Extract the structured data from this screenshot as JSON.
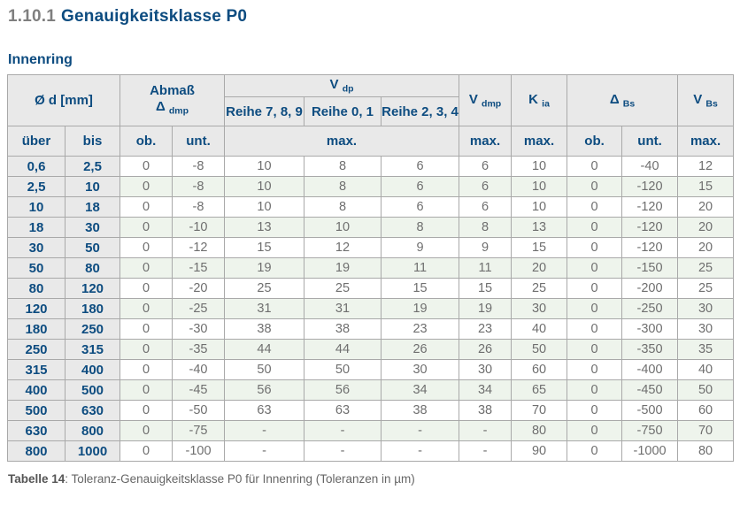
{
  "page": {
    "section_number": "1.10.1",
    "section_title": "Genauigkeitsklasse P0",
    "subtitle": "Innenring",
    "caption_label": "Tabelle 14",
    "caption_text": ": Toleranz-Genauigkeitsklasse P0 für Innenring (Toleranzen in µm)"
  },
  "colors": {
    "heading_blue": "#0d4c80",
    "section_number_gray": "#7f7f7f",
    "header_bg": "#e9e9e9",
    "stripe_green": "#eef4ec",
    "data_text_gray": "#6f6f6f",
    "border_gray": "#a9a9a9"
  },
  "table": {
    "headers": {
      "diameter": "Ø d  [mm]",
      "abmass": "Abmaß",
      "abmass_sym": "Δ",
      "abmass_sub": "dmp",
      "vdp_base": "V",
      "vdp_sub": "dp",
      "reihe_789": "Reihe 7, 8, 9",
      "reihe_01": "Reihe 0, 1",
      "reihe_234": "Reihe 2, 3, 4",
      "vdmp_base": "V",
      "vdmp_sub": "dmp",
      "kia_base": "K",
      "kia_sub": "ia",
      "dbs_base": "Δ",
      "dbs_sub": "Bs",
      "vbs_base": "V",
      "vbs_sub": "Bs",
      "ueber": "über",
      "bis": "bis",
      "ob": "ob.",
      "unt": "unt.",
      "max": "max."
    },
    "rows": [
      [
        "0,6",
        "2,5",
        "0",
        "-8",
        "10",
        "8",
        "6",
        "6",
        "10",
        "0",
        "-40",
        "12"
      ],
      [
        "2,5",
        "10",
        "0",
        "-8",
        "10",
        "8",
        "6",
        "6",
        "10",
        "0",
        "-120",
        "15"
      ],
      [
        "10",
        "18",
        "0",
        "-8",
        "10",
        "8",
        "6",
        "6",
        "10",
        "0",
        "-120",
        "20"
      ],
      [
        "18",
        "30",
        "0",
        "-10",
        "13",
        "10",
        "8",
        "8",
        "13",
        "0",
        "-120",
        "20"
      ],
      [
        "30",
        "50",
        "0",
        "-12",
        "15",
        "12",
        "9",
        "9",
        "15",
        "0",
        "-120",
        "20"
      ],
      [
        "50",
        "80",
        "0",
        "-15",
        "19",
        "19",
        "11",
        "11",
        "20",
        "0",
        "-150",
        "25"
      ],
      [
        "80",
        "120",
        "0",
        "-20",
        "25",
        "25",
        "15",
        "15",
        "25",
        "0",
        "-200",
        "25"
      ],
      [
        "120",
        "180",
        "0",
        "-25",
        "31",
        "31",
        "19",
        "19",
        "30",
        "0",
        "-250",
        "30"
      ],
      [
        "180",
        "250",
        "0",
        "-30",
        "38",
        "38",
        "23",
        "23",
        "40",
        "0",
        "-300",
        "30"
      ],
      [
        "250",
        "315",
        "0",
        "-35",
        "44",
        "44",
        "26",
        "26",
        "50",
        "0",
        "-350",
        "35"
      ],
      [
        "315",
        "400",
        "0",
        "-40",
        "50",
        "50",
        "30",
        "30",
        "60",
        "0",
        "-400",
        "40"
      ],
      [
        "400",
        "500",
        "0",
        "-45",
        "56",
        "56",
        "34",
        "34",
        "65",
        "0",
        "-450",
        "50"
      ],
      [
        "500",
        "630",
        "0",
        "-50",
        "63",
        "63",
        "38",
        "38",
        "70",
        "0",
        "-500",
        "60"
      ],
      [
        "630",
        "800",
        "0",
        "-75",
        "-",
        "-",
        "-",
        "-",
        "80",
        "0",
        "-750",
        "70"
      ],
      [
        "800",
        "1000",
        "0",
        "-100",
        "-",
        "-",
        "-",
        "-",
        "90",
        "0",
        "-1000",
        "80"
      ]
    ]
  }
}
